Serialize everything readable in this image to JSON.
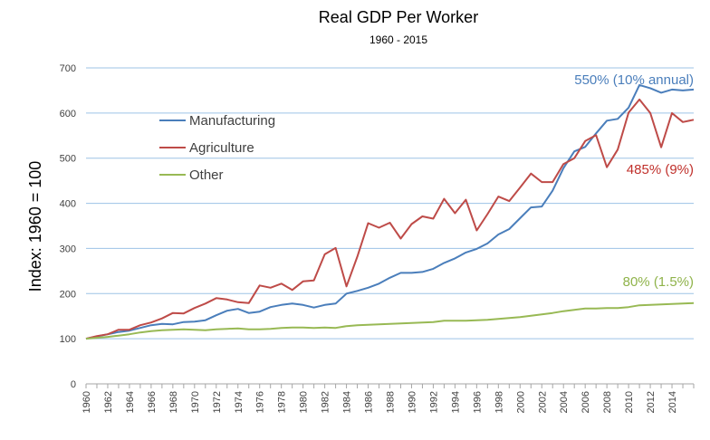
{
  "chart_data": {
    "type": "line",
    "title": "Real GDP Per Worker",
    "subtitle": "1960 - 2015",
    "xlabel": "",
    "ylabel": "Index:  1960 = 100",
    "ylim": [
      0,
      700
    ],
    "yticks": [
      0,
      100,
      200,
      300,
      400,
      500,
      600,
      700
    ],
    "xlim": [
      1960,
      2016
    ],
    "xticks": [
      1960,
      1962,
      1964,
      1966,
      1968,
      1970,
      1972,
      1974,
      1976,
      1978,
      1980,
      1982,
      1984,
      1986,
      1988,
      1990,
      1992,
      1994,
      1996,
      1998,
      2000,
      2002,
      2004,
      2006,
      2008,
      2010,
      2012,
      2014
    ],
    "grid": true,
    "legend_position": "upper-left",
    "x": [
      1960,
      1961,
      1962,
      1963,
      1964,
      1965,
      1966,
      1967,
      1968,
      1969,
      1970,
      1971,
      1972,
      1973,
      1974,
      1975,
      1976,
      1977,
      1978,
      1979,
      1980,
      1981,
      1982,
      1983,
      1984,
      1985,
      1986,
      1987,
      1988,
      1989,
      1990,
      1991,
      1992,
      1993,
      1994,
      1995,
      1996,
      1997,
      1998,
      1999,
      2000,
      2001,
      2002,
      2003,
      2004,
      2005,
      2006,
      2007,
      2008,
      2009,
      2010,
      2011,
      2012,
      2013,
      2014,
      2015,
      2016
    ],
    "series": [
      {
        "name": "Manufacturing",
        "color": "#4a7ebb",
        "values": [
          100,
          105,
          110,
          115,
          118,
          124,
          130,
          133,
          132,
          137,
          138,
          141,
          152,
          162,
          166,
          157,
          160,
          170,
          175,
          178,
          175,
          169,
          175,
          178,
          200,
          206,
          213,
          222,
          235,
          246,
          246,
          248,
          255,
          268,
          278,
          291,
          299,
          311,
          331,
          343,
          367,
          391,
          393,
          428,
          478,
          515,
          525,
          555,
          583,
          587,
          612,
          662,
          655,
          645,
          652,
          650,
          652
        ]
      },
      {
        "name": "Agriculture",
        "color": "#be4b48",
        "values": [
          100,
          106,
          110,
          120,
          120,
          130,
          136,
          145,
          157,
          156,
          168,
          178,
          190,
          187,
          181,
          179,
          218,
          213,
          222,
          208,
          227,
          229,
          287,
          301,
          216,
          282,
          356,
          346,
          357,
          322,
          354,
          371,
          366,
          410,
          378,
          408,
          340,
          376,
          415,
          405,
          435,
          466,
          447,
          447,
          487,
          500,
          538,
          551,
          480,
          519,
          601,
          630,
          600,
          524,
          600,
          580,
          585
        ]
      },
      {
        "name": "Other",
        "color": "#98b954",
        "values": [
          100,
          102,
          104,
          107,
          110,
          114,
          117,
          119,
          120,
          121,
          120,
          119,
          121,
          122,
          123,
          121,
          121,
          122,
          124,
          125,
          125,
          124,
          125,
          124,
          128,
          130,
          131,
          132,
          133,
          134,
          135,
          136,
          137,
          140,
          140,
          140,
          141,
          142,
          144,
          146,
          148,
          151,
          154,
          157,
          161,
          164,
          167,
          167,
          168,
          168,
          170,
          174,
          175,
          176,
          177,
          178,
          179
        ]
      }
    ],
    "annotations": [
      {
        "text": "550% (10% annual)",
        "series": "Manufacturing"
      },
      {
        "text": "485% (9%)",
        "series": "Agriculture"
      },
      {
        "text": "80% (1.5%)",
        "series": "Other"
      }
    ]
  }
}
